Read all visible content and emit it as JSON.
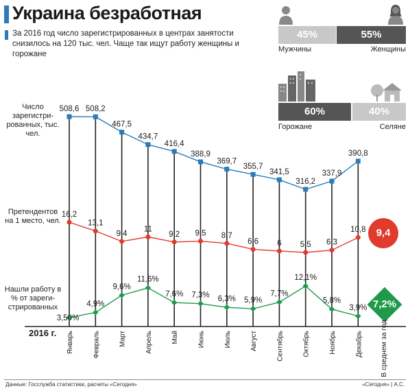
{
  "header": {
    "title": "Украина безработная",
    "subtitle": "За 2016 год число зарегистрированных в центрах занятости снизилось на 120 тыс. чел. Чаще так ищут работу женщины и горожане"
  },
  "gender": {
    "men_pct": "45%",
    "women_pct": "55%",
    "men_label": "Мужчины",
    "women_label": "Женщины",
    "men_color": "#c8c8c8",
    "women_color": "#555555"
  },
  "settlement": {
    "urban_pct": "60%",
    "rural_pct": "40%",
    "urban_label": "Горожане",
    "rural_label": "Селяне",
    "urban_color": "#555555",
    "rural_color": "#c8c8c8"
  },
  "icons": [
    "man-icon",
    "woman-icon",
    "city-buildings-icon",
    "village-house-icon"
  ],
  "row_labels": {
    "registered": "Число зарегистри- рованных, тыс. чел.",
    "applicants": "Претендентов на 1 место, чел.",
    "employed": "Нашли работу в %% от зареги- стрированных"
  },
  "year_label": "2016 г.",
  "averages": {
    "applicants": "9,4",
    "employed": "7,2%",
    "label": "В среднем за год",
    "applicants_color": "#e03b2c",
    "employed_color": "#1e9a4a"
  },
  "footer": {
    "source": "Данные: Госслужба статистики, расчеты «Сегодня»",
    "credit": "«Сегодня» | А.С."
  },
  "chart_data": {
    "type": "line",
    "categories": [
      "Январь",
      "Февраль",
      "Март",
      "Апрель",
      "Май",
      "Июнь",
      "Июль",
      "Август",
      "Сентябрь",
      "Октябрь",
      "Ноябрь",
      "Декабрь"
    ],
    "series": [
      {
        "name": "Число зарегистрированных, тыс. чел.",
        "color": "#2b7bb9",
        "marker": "square",
        "values": [
          508.6,
          508.2,
          467.5,
          434.7,
          416.4,
          388.9,
          369.7,
          355.7,
          341.5,
          316.2,
          337.9,
          390.8
        ],
        "labels": [
          "508,6",
          "508,2",
          "467,5",
          "434,7",
          "416,4",
          "388,9",
          "369,7",
          "355,7",
          "341,5",
          "316,2",
          "337,9",
          "390,8"
        ]
      },
      {
        "name": "Претендентов на 1 место, чел.",
        "color": "#e03b2c",
        "marker": "circle",
        "values": [
          16.2,
          13.1,
          9.4,
          11,
          9.2,
          9.5,
          8.7,
          6.6,
          6,
          5.5,
          6.3,
          10.8
        ],
        "labels": [
          "16,2",
          "13,1",
          "9,4",
          "11",
          "9,2",
          "9,5",
          "8,7",
          "6,6",
          "6",
          "5,5",
          "6,3",
          "10,8"
        ]
      },
      {
        "name": "Нашли работу в % от зарегистрированных",
        "color": "#1e9a4a",
        "marker": "diamond",
        "values": [
          3.5,
          4.9,
          9.6,
          11.6,
          7.6,
          7.3,
          6.3,
          5.9,
          7.7,
          12.1,
          5.8,
          3.9
        ],
        "labels": [
          "3,50%",
          "4,9%",
          "9,6%",
          "11,6%",
          "7,6%",
          "7,3%",
          "6,3%",
          "5,9%",
          "7,7%",
          "12,1%",
          "5,8%",
          "3,9%"
        ]
      }
    ]
  }
}
